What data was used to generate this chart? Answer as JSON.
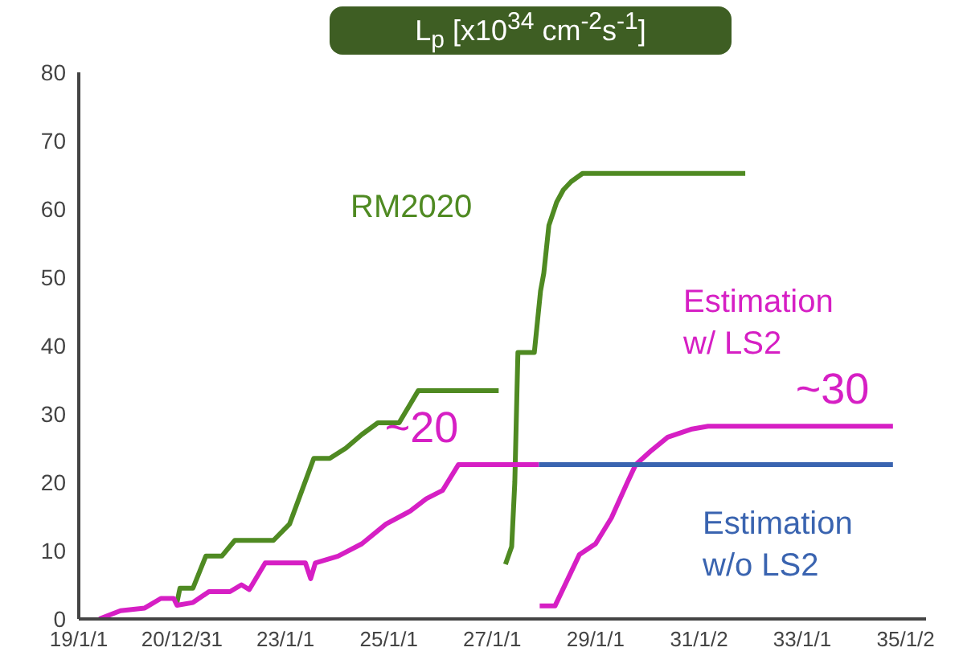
{
  "chart_data": {
    "type": "line",
    "title": "L$_{p}$ [x10$^{34}$ cm$^{-2}$s$^{-1}$]",
    "xlim": [
      "2019-01-01",
      "2035-05-26"
    ],
    "ylim": [
      0,
      80
    ],
    "yticks": [
      0,
      10,
      20,
      30,
      40,
      50,
      60,
      70,
      80
    ],
    "xticks": [
      {
        "value": "2019-01-01",
        "label": "19/1/1"
      },
      {
        "value": "2020-12-31",
        "label": "20/12/31"
      },
      {
        "value": "2023-01-01",
        "label": "23/1/1"
      },
      {
        "value": "2025-01-01",
        "label": "25/1/1"
      },
      {
        "value": "2027-01-01",
        "label": "27/1/1"
      },
      {
        "value": "2029-01-01",
        "label": "29/1/1"
      },
      {
        "value": "2031-01-02",
        "label": "31/1/2"
      },
      {
        "value": "2033-01-01",
        "label": "33/1/1"
      },
      {
        "value": "2035-01-02",
        "label": "35/1/2"
      }
    ],
    "grid": false,
    "series": [
      {
        "name": "RM2020",
        "color": "#4f8a22",
        "x": [
          "2020-11-25",
          "2020-12-16",
          "2021-03-18",
          "2021-06-17",
          "2021-10-08",
          "2022-01-08",
          "2022-10-08",
          "2023-01-30",
          "2023-07-20",
          "2023-11-10",
          "2024-03-03",
          "2024-06-24",
          "2024-10-15",
          "2025-03-14",
          "2025-07-27",
          "2027-02-16",
          "2027-03-14",
          "2027-04-05",
          "2027-05-19",
          "2027-06-10",
          "2027-07-02",
          "2027-10-26",
          "2027-12-09",
          "2028-01-01",
          "2028-02-06",
          "2028-04-01",
          "2028-05-18",
          "2028-07-12",
          "2028-10-01",
          "2029-02-02",
          "2031-11-25"
        ],
        "values": [
          2.4,
          4.5,
          4.5,
          9.2,
          9.2,
          11.5,
          11.5,
          13.9,
          23.5,
          23.5,
          25,
          27,
          28.7,
          28.7,
          33.4,
          33.4,
          null,
          8,
          10.6,
          20,
          39,
          39,
          48,
          50.6,
          57.6,
          61,
          62.8,
          64,
          65.2,
          65.2,
          65.2
        ]
      },
      {
        "name": "Estimation w/ LS2",
        "color": "#d61fc4",
        "x": [
          "2019-05-26",
          "2019-10-23",
          "2020-04-11",
          "2020-08-03",
          "2020-11-02",
          "2020-11-25",
          "2021-03-18",
          "2021-07-09",
          "2021-12-05",
          "2022-02-24",
          "2022-04-20",
          "2022-08-11",
          "2023-05-22",
          "2023-06-28",
          "2023-07-31",
          "2024-01-08",
          "2024-06-24",
          "2024-12-12",
          "2025-06-02",
          "2025-09-23",
          "2026-01-15",
          "2026-05-08",
          "2026-10-26",
          "2027-11-28",
          "2027-12-01",
          "2027-12-03",
          "2028-03-20",
          "2028-09-08",
          "2029-01-01",
          "2029-04-23",
          "2029-08-14",
          "2029-10-12",
          "2030-02-02",
          "2030-05-26",
          "2030-11-14",
          "2031-03-07",
          "2034-10-04"
        ],
        "values": [
          0,
          1.2,
          1.6,
          3,
          3,
          2,
          2.4,
          4,
          4,
          5,
          4.3,
          8.2,
          8.2,
          5.9,
          8.2,
          9.2,
          11,
          13.9,
          15.8,
          17.6,
          18.8,
          22.6,
          22.6,
          22.6,
          null,
          1.9,
          1.9,
          9.4,
          11,
          14.8,
          20,
          22.6,
          24.7,
          26.6,
          27.8,
          28.2,
          28.2
        ]
      },
      {
        "name": "Estimation w/o LS2",
        "color": "#3a64b0",
        "x": [
          "2027-11-28",
          "2034-10-04"
        ],
        "values": [
          22.6,
          22.6
        ]
      }
    ],
    "annotations": [
      {
        "text": "~20",
        "x": "2026-05-08",
        "y": 22.6
      },
      {
        "text": "~30",
        "x": "2034-04-20",
        "y": 28.2
      }
    ]
  }
}
